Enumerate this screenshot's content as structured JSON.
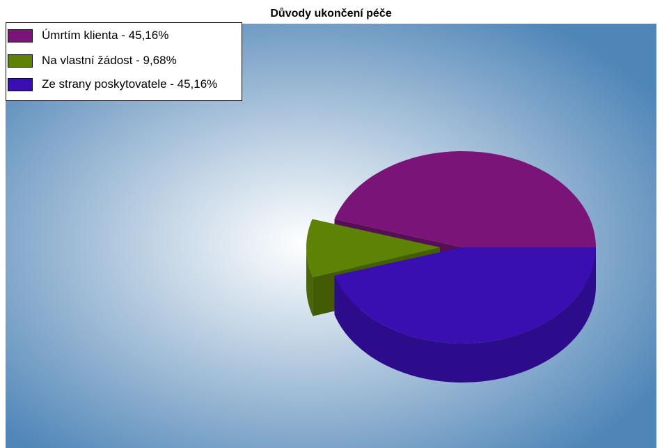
{
  "chart_data": {
    "type": "pie",
    "title": "Důvody ukončení péče",
    "slices": [
      {
        "label": "Úmrtím klienta",
        "value": 45.16,
        "legend_text": "Úmrtím klienta - 45,16%",
        "color": "#7b1479"
      },
      {
        "label": "Na vlastní žádost",
        "value": 9.68,
        "legend_text": "Na vlastní žádost - 9,68%",
        "color": "#5e8206"
      },
      {
        "label": "Ze strany poskytovatele",
        "value": 45.16,
        "legend_text": "Ze strany poskytovatele - 45,16%",
        "color": "#390fb1"
      }
    ],
    "legend_position": "top-left",
    "style": "3d exploded pie"
  }
}
